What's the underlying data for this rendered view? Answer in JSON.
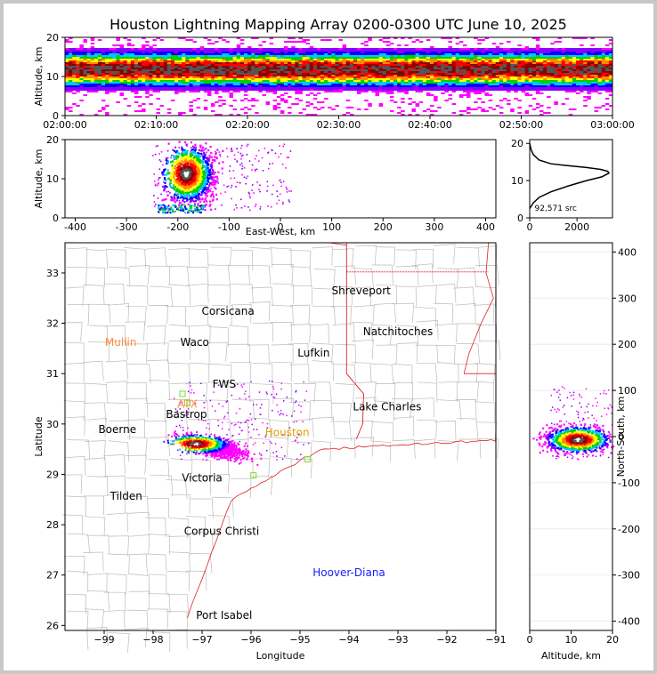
{
  "title": "Houston Lightning Mapping Array 0200-0300 UTC June 10, 2025",
  "colors": {
    "background": "#c8c8c8",
    "panel": "#ffffff",
    "county_lines": "#bbbbbb",
    "state_lines": "#e02020",
    "density_scale": [
      "#ff00ff",
      "#8a00ff",
      "#0000ff",
      "#00c8ff",
      "#00d000",
      "#ffff00",
      "#ff8800",
      "#ff0000",
      "#8b0000",
      "#555555",
      "#ffffff"
    ]
  },
  "chart_data": [
    {
      "id": "time_height",
      "type": "heatmap",
      "xlabel": "",
      "ylabel": "Altitude, km",
      "x_ticks": [
        "02:00:00",
        "02:10:00",
        "02:20:00",
        "02:30:00",
        "02:40:00",
        "02:50:00",
        "03:00:00"
      ],
      "xlim": [
        "02:00:00",
        "03:00:00"
      ],
      "y_ticks": [
        0,
        10,
        20
      ],
      "ylim": [
        0,
        20
      ],
      "peak_altitude_km": 12,
      "range_km": [
        2,
        18
      ]
    },
    {
      "id": "ew_height",
      "type": "heatmap",
      "xlabel": "East-West, km",
      "ylabel": "Altitude, km",
      "x_ticks": [
        -400,
        -300,
        -200,
        -100,
        0,
        100,
        200,
        300,
        400
      ],
      "xlim": [
        -420,
        420
      ],
      "y_ticks": [
        0,
        10,
        20
      ],
      "ylim": [
        0,
        20
      ],
      "core_x_km": [
        -200,
        -140
      ],
      "scatter_x_km": [
        -250,
        20
      ]
    },
    {
      "id": "alt_histogram",
      "type": "line",
      "xlabel": "",
      "ylabel": "",
      "x_ticks": [
        0,
        2000
      ],
      "xlim": [
        0,
        3500
      ],
      "y_ticks": [
        0,
        10,
        20
      ],
      "ylim": [
        0,
        21
      ],
      "annotation": "92,571 src",
      "x": [
        0,
        150,
        400,
        900,
        1600,
        2400,
        3050,
        3350,
        3300,
        3000,
        2400,
        1600,
        900,
        400,
        150,
        50,
        0
      ],
      "y": [
        2.5,
        4,
        5.5,
        7,
        8.5,
        10,
        11,
        12,
        12.5,
        13,
        13.5,
        14,
        14.5,
        15.5,
        17,
        18.5,
        20
      ]
    },
    {
      "id": "plan_view",
      "type": "scatter",
      "xlabel": "Longitude",
      "ylabel": "Latitude",
      "x_ticks": [
        -99,
        -98,
        -97,
        -96,
        -95,
        -94,
        -93,
        -92,
        -91
      ],
      "xlim": [
        -99.8,
        -91
      ],
      "y_ticks": [
        26,
        27,
        28,
        29,
        30,
        31,
        32,
        33
      ],
      "ylim": [
        25.9,
        33.6
      ],
      "cities": [
        {
          "name": "Shreveport",
          "lon": -93.75,
          "lat": 32.58,
          "color": "#000000"
        },
        {
          "name": "Corsicana",
          "lon": -96.47,
          "lat": 32.17,
          "color": "#000000"
        },
        {
          "name": "Natchitoches",
          "lon": -93.0,
          "lat": 31.76,
          "color": "#000000"
        },
        {
          "name": "Mullin",
          "lon": -98.66,
          "lat": 31.55,
          "color": "#ff8c40"
        },
        {
          "name": "Waco",
          "lon": -97.15,
          "lat": 31.55,
          "color": "#000000"
        },
        {
          "name": "Lufkin",
          "lon": -94.72,
          "lat": 31.34,
          "color": "#000000"
        },
        {
          "name": "FWS",
          "lon": -96.55,
          "lat": 30.72,
          "color": "#000000"
        },
        {
          "name": "ATX",
          "lon": -97.3,
          "lat": 30.32,
          "color": "#ff8c40"
        },
        {
          "name": "Bastrop",
          "lon": -97.32,
          "lat": 30.12,
          "color": "#000000"
        },
        {
          "name": "Lake Charles",
          "lon": -93.22,
          "lat": 30.27,
          "color": "#000000"
        },
        {
          "name": "Boerne",
          "lon": -98.73,
          "lat": 29.82,
          "color": "#000000"
        },
        {
          "name": "Houston",
          "lon": -95.26,
          "lat": 29.76,
          "color": "#e0a000"
        },
        {
          "name": "Victoria",
          "lon": -97.0,
          "lat": 28.86,
          "color": "#000000"
        },
        {
          "name": "Tilden",
          "lon": -98.55,
          "lat": 28.5,
          "color": "#000000"
        },
        {
          "name": "Corpus Christi",
          "lon": -96.6,
          "lat": 27.8,
          "color": "#000000"
        },
        {
          "name": "Hoover-Diana",
          "lon": -94.0,
          "lat": 26.98,
          "color": "#1a1aff"
        },
        {
          "name": "Port Isabel",
          "lon": -96.55,
          "lat": 26.13,
          "color": "#000000"
        }
      ],
      "stations": [
        {
          "lon": -97.4,
          "lat": 30.6
        },
        {
          "lon": -97.3,
          "lat": 30.42
        },
        {
          "lon": -94.85,
          "lat": 29.3
        },
        {
          "lon": -95.95,
          "lat": 28.98
        }
      ],
      "storm_core": {
        "lon": [
          -97.45,
          -96.5
        ],
        "lat": [
          29.35,
          29.85
        ]
      }
    },
    {
      "id": "ns_height",
      "type": "heatmap",
      "xlabel": "Altitude, km",
      "ylabel": "North-South, km",
      "x_ticks": [
        0,
        10,
        20
      ],
      "xlim": [
        0,
        20
      ],
      "y_ticks": [
        -400,
        -300,
        -200,
        -100,
        0,
        100,
        200,
        300,
        400
      ],
      "ylim": [
        -420,
        420
      ],
      "core_y_km": [
        -40,
        30
      ]
    }
  ]
}
